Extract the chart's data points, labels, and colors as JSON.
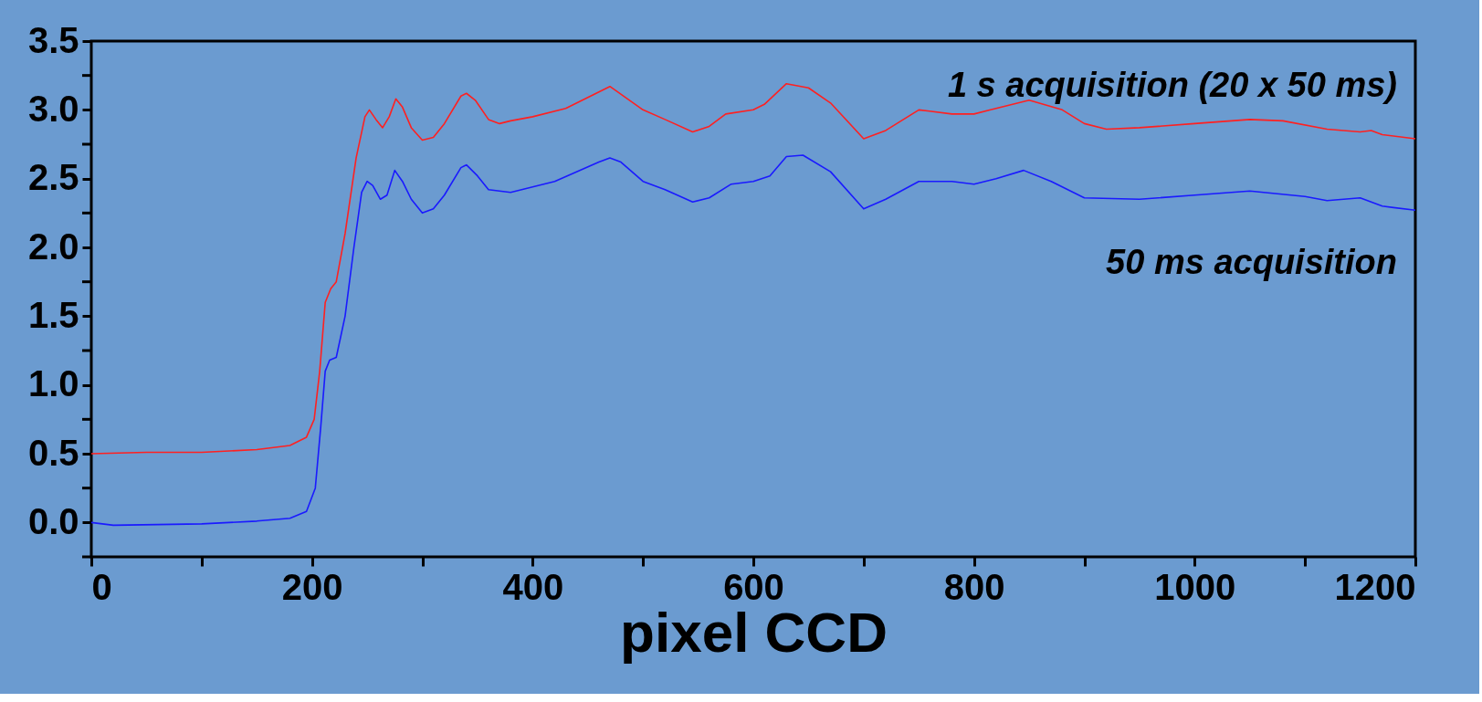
{
  "chart_data": {
    "type": "line",
    "xlabel": "pixel CCD",
    "xlim": [
      0,
      1200
    ],
    "xticks": [
      0,
      {
        "value": 100,
        "label": null
      },
      200,
      {
        "value": 300,
        "label": null
      },
      400,
      {
        "value": 500,
        "label": null
      },
      600,
      {
        "value": 700,
        "label": null
      },
      800,
      {
        "value": 900,
        "label": null
      },
      1000,
      {
        "value": 1100,
        "label": null
      },
      1200
    ],
    "ylim": [
      -0.25,
      3.5
    ],
    "yticks": [
      {
        "value": -0.25,
        "label": null
      },
      {
        "value": 0,
        "label": "0.0"
      },
      {
        "value": 0.25,
        "label": null
      },
      {
        "value": 0.5,
        "label": "0.5"
      },
      {
        "value": 0.75,
        "label": null
      },
      {
        "value": 1,
        "label": "1.0"
      },
      {
        "value": 1.25,
        "label": null
      },
      {
        "value": 1.5,
        "label": "1.5"
      },
      {
        "value": 1.75,
        "label": null
      },
      {
        "value": 2,
        "label": "2.0"
      },
      {
        "value": 2.25,
        "label": null
      },
      {
        "value": 2.5,
        "label": "2.5"
      },
      {
        "value": 2.75,
        "label": null
      },
      {
        "value": 3,
        "label": "3.0"
      },
      {
        "value": 3.25,
        "label": null
      },
      {
        "value": 3.5,
        "label": "3.5"
      }
    ],
    "grid": false,
    "marker": "none",
    "line_style": "solid",
    "series": [
      {
        "name": "1 s acquisition (20 x 50 ms)",
        "color": "#ff2020",
        "x": [
          0,
          50,
          100,
          150,
          180,
          195,
          202,
          207,
          212,
          217,
          222,
          230,
          240,
          248,
          252,
          258,
          264,
          270,
          276,
          282,
          290,
          300,
          310,
          320,
          335,
          340,
          348,
          360,
          370,
          380,
          400,
          430,
          470,
          500,
          520,
          545,
          560,
          575,
          600,
          610,
          630,
          650,
          670,
          700,
          720,
          750,
          780,
          800,
          815,
          850,
          880,
          900,
          920,
          950,
          1000,
          1050,
          1080,
          1120,
          1150,
          1160,
          1170,
          1200
        ],
        "values": [
          0.5,
          0.51,
          0.51,
          0.53,
          0.56,
          0.62,
          0.75,
          1.1,
          1.6,
          1.7,
          1.75,
          2.1,
          2.65,
          2.95,
          3.0,
          2.93,
          2.87,
          2.95,
          3.08,
          3.02,
          2.87,
          2.78,
          2.8,
          2.9,
          3.1,
          3.12,
          3.07,
          2.93,
          2.9,
          2.92,
          2.95,
          3.01,
          3.17,
          3.0,
          2.93,
          2.84,
          2.88,
          2.97,
          3.0,
          3.04,
          3.19,
          3.16,
          3.05,
          2.79,
          2.85,
          3.0,
          2.97,
          2.97,
          3.0,
          3.07,
          3.0,
          2.9,
          2.86,
          2.87,
          2.9,
          2.93,
          2.92,
          2.86,
          2.84,
          2.85,
          2.82,
          2.79
        ]
      },
      {
        "name": "50 ms acquisition",
        "color": "#1a1aff",
        "x": [
          0,
          20,
          100,
          150,
          180,
          195,
          203,
          208,
          212,
          216,
          222,
          230,
          238,
          245,
          250,
          255,
          262,
          268,
          275,
          282,
          290,
          300,
          310,
          320,
          335,
          340,
          350,
          360,
          380,
          420,
          460,
          470,
          480,
          500,
          520,
          545,
          560,
          580,
          600,
          615,
          630,
          645,
          670,
          700,
          720,
          750,
          780,
          800,
          820,
          845,
          870,
          900,
          950,
          1000,
          1050,
          1100,
          1120,
          1150,
          1170,
          1200
        ],
        "values": [
          0.0,
          -0.02,
          -0.01,
          0.01,
          0.03,
          0.08,
          0.25,
          0.7,
          1.1,
          1.18,
          1.2,
          1.5,
          2.0,
          2.4,
          2.48,
          2.45,
          2.35,
          2.38,
          2.56,
          2.48,
          2.35,
          2.25,
          2.28,
          2.38,
          2.58,
          2.6,
          2.52,
          2.42,
          2.4,
          2.48,
          2.62,
          2.65,
          2.62,
          2.48,
          2.42,
          2.33,
          2.36,
          2.46,
          2.48,
          2.52,
          2.66,
          2.67,
          2.55,
          2.28,
          2.35,
          2.48,
          2.48,
          2.46,
          2.5,
          2.56,
          2.48,
          2.36,
          2.35,
          2.38,
          2.41,
          2.37,
          2.34,
          2.36,
          2.3,
          2.27
        ]
      }
    ]
  }
}
